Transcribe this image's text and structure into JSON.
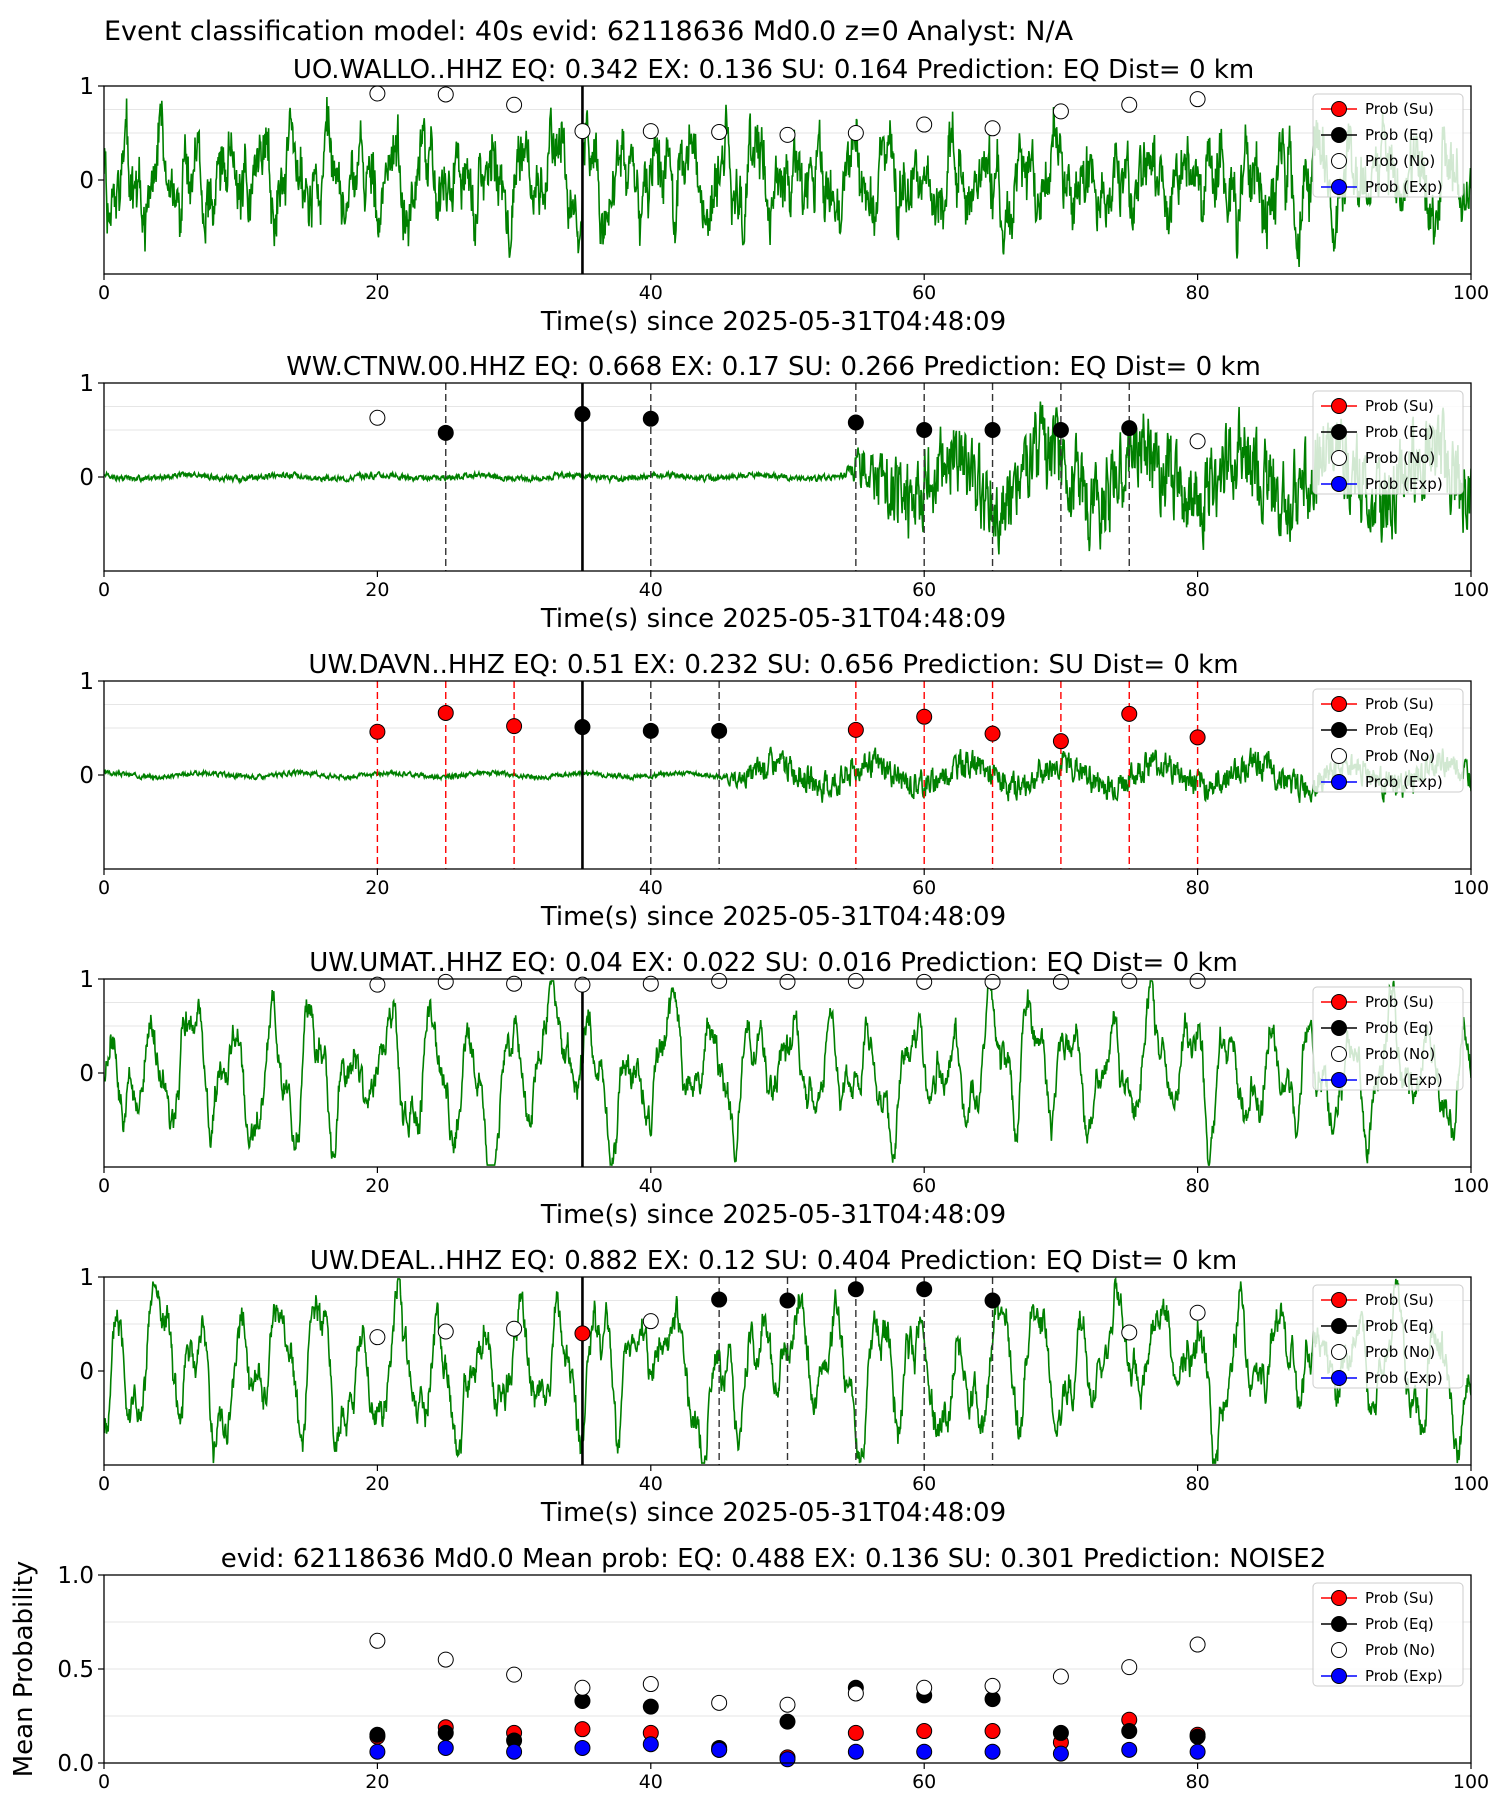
{
  "suptitle": "Event classification model: 40s evid: 62118636 Md0.0 z=0 Analyst: N/A",
  "legend_labels": [
    "Prob (Su)",
    "Prob (Eq)",
    "Prob (No)",
    "Prob (Exp)"
  ],
  "colors": {
    "su": "#ff0000",
    "eq": "#000000",
    "no": "#ffffff",
    "exp": "#0000ff",
    "wave": "#008000"
  },
  "chart_data": [
    {
      "type": "line",
      "title": "UO.WALLO..HHZ   EQ: 0.342  EX: 0.136  SU: 0.164   Prediction: EQ    Dist= 0 km",
      "xlabel": "Time(s) since 2025-05-31T04:48:09",
      "ylabel": "",
      "xlim": [
        0,
        100
      ],
      "ylim": [
        -1,
        1
      ],
      "xticks": [
        "0",
        "20",
        "40",
        "60",
        "80",
        "100"
      ],
      "yticks": [
        "1",
        "0"
      ],
      "waveform": {
        "style": "noisy",
        "amplitude": 0.6,
        "seed": 1,
        "onset": 0,
        "post_gain": 1
      },
      "pick_time": 35,
      "points": [
        {
          "x": 20,
          "y": 0.92,
          "cls": "no"
        },
        {
          "x": 25,
          "y": 0.91,
          "cls": "no"
        },
        {
          "x": 30,
          "y": 0.8,
          "cls": "no"
        },
        {
          "x": 35,
          "y": 0.52,
          "cls": "no"
        },
        {
          "x": 40,
          "y": 0.52,
          "cls": "no"
        },
        {
          "x": 45,
          "y": 0.51,
          "cls": "no"
        },
        {
          "x": 50,
          "y": 0.48,
          "cls": "no"
        },
        {
          "x": 55,
          "y": 0.5,
          "cls": "no"
        },
        {
          "x": 60,
          "y": 0.59,
          "cls": "no"
        },
        {
          "x": 65,
          "y": 0.55,
          "cls": "no"
        },
        {
          "x": 70,
          "y": 0.73,
          "cls": "no"
        },
        {
          "x": 75,
          "y": 0.8,
          "cls": "no"
        },
        {
          "x": 80,
          "y": 0.86,
          "cls": "no"
        }
      ],
      "vlines": []
    },
    {
      "type": "line",
      "title": "WW.CTNW.00.HHZ   EQ: 0.668  EX: 0.17  SU: 0.266   Prediction: EQ    Dist= 0 km",
      "xlabel": "Time(s) since 2025-05-31T04:48:09",
      "ylabel": "",
      "xlim": [
        0,
        100
      ],
      "ylim": [
        -1,
        1
      ],
      "xticks": [
        "0",
        "20",
        "40",
        "60",
        "80",
        "100"
      ],
      "yticks": [
        "1",
        "0"
      ],
      "waveform": {
        "style": "onset",
        "amplitude": 0.05,
        "seed": 2,
        "onset": 54,
        "post_gain": 14
      },
      "pick_time": 35,
      "points": [
        {
          "x": 20,
          "y": 0.63,
          "cls": "no"
        },
        {
          "x": 25,
          "y": 0.47,
          "cls": "eq"
        },
        {
          "x": 35,
          "y": 0.67,
          "cls": "eq"
        },
        {
          "x": 40,
          "y": 0.62,
          "cls": "eq"
        },
        {
          "x": 55,
          "y": 0.58,
          "cls": "eq"
        },
        {
          "x": 60,
          "y": 0.5,
          "cls": "eq"
        },
        {
          "x": 65,
          "y": 0.5,
          "cls": "eq"
        },
        {
          "x": 70,
          "y": 0.5,
          "cls": "eq"
        },
        {
          "x": 75,
          "y": 0.52,
          "cls": "eq"
        },
        {
          "x": 80,
          "y": 0.38,
          "cls": "no"
        }
      ],
      "vlines": [
        {
          "x": 25,
          "cls": "eq"
        },
        {
          "x": 40,
          "cls": "eq"
        },
        {
          "x": 55,
          "cls": "eq"
        },
        {
          "x": 60,
          "cls": "eq"
        },
        {
          "x": 65,
          "cls": "eq"
        },
        {
          "x": 70,
          "cls": "eq"
        },
        {
          "x": 75,
          "cls": "eq"
        }
      ]
    },
    {
      "type": "line",
      "title": "UW.DAVN..HHZ   EQ: 0.51  EX: 0.232  SU: 0.656   Prediction: SU    Dist= 0 km",
      "xlabel": "Time(s) since 2025-05-31T04:48:09",
      "ylabel": "",
      "xlim": [
        0,
        100
      ],
      "ylim": [
        -1,
        1
      ],
      "xticks": [
        "0",
        "20",
        "40",
        "60",
        "80",
        "100"
      ],
      "yticks": [
        "1",
        "0"
      ],
      "waveform": {
        "style": "onset",
        "amplitude": 0.04,
        "seed": 3,
        "onset": 45,
        "post_gain": 6
      },
      "pick_time": 35,
      "points": [
        {
          "x": 20,
          "y": 0.46,
          "cls": "su"
        },
        {
          "x": 25,
          "y": 0.66,
          "cls": "su"
        },
        {
          "x": 30,
          "y": 0.52,
          "cls": "su"
        },
        {
          "x": 35,
          "y": 0.51,
          "cls": "eq"
        },
        {
          "x": 40,
          "y": 0.47,
          "cls": "eq"
        },
        {
          "x": 45,
          "y": 0.47,
          "cls": "eq"
        },
        {
          "x": 55,
          "y": 0.48,
          "cls": "su"
        },
        {
          "x": 60,
          "y": 0.62,
          "cls": "su"
        },
        {
          "x": 65,
          "y": 0.44,
          "cls": "su"
        },
        {
          "x": 70,
          "y": 0.36,
          "cls": "su"
        },
        {
          "x": 75,
          "y": 0.65,
          "cls": "su"
        },
        {
          "x": 80,
          "y": 0.4,
          "cls": "su"
        }
      ],
      "vlines": [
        {
          "x": 20,
          "cls": "su"
        },
        {
          "x": 25,
          "cls": "su"
        },
        {
          "x": 30,
          "cls": "su"
        },
        {
          "x": 40,
          "cls": "eq"
        },
        {
          "x": 45,
          "cls": "eq"
        },
        {
          "x": 55,
          "cls": "su"
        },
        {
          "x": 60,
          "cls": "su"
        },
        {
          "x": 65,
          "cls": "su"
        },
        {
          "x": 70,
          "cls": "su"
        },
        {
          "x": 75,
          "cls": "su"
        },
        {
          "x": 80,
          "cls": "su"
        }
      ]
    },
    {
      "type": "line",
      "title": "UW.UMAT..HHZ   EQ: 0.04  EX: 0.022  SU: 0.016   Prediction: EQ    Dist= 0 km",
      "xlabel": "Time(s) since 2025-05-31T04:48:09",
      "ylabel": "",
      "xlim": [
        0,
        100
      ],
      "ylim": [
        -1,
        1
      ],
      "xticks": [
        "0",
        "20",
        "40",
        "60",
        "80",
        "100"
      ],
      "yticks": [
        "1",
        "0"
      ],
      "waveform": {
        "style": "smooth",
        "amplitude": 0.55,
        "seed": 4,
        "onset": 0,
        "post_gain": 1
      },
      "pick_time": 35,
      "points": [
        {
          "x": 20,
          "y": 0.94,
          "cls": "no"
        },
        {
          "x": 25,
          "y": 0.97,
          "cls": "no"
        },
        {
          "x": 30,
          "y": 0.95,
          "cls": "no"
        },
        {
          "x": 35,
          "y": 0.94,
          "cls": "no"
        },
        {
          "x": 40,
          "y": 0.95,
          "cls": "no"
        },
        {
          "x": 45,
          "y": 0.98,
          "cls": "no"
        },
        {
          "x": 50,
          "y": 0.97,
          "cls": "no"
        },
        {
          "x": 55,
          "y": 0.98,
          "cls": "no"
        },
        {
          "x": 60,
          "y": 0.97,
          "cls": "no"
        },
        {
          "x": 65,
          "y": 0.97,
          "cls": "no"
        },
        {
          "x": 70,
          "y": 0.97,
          "cls": "no"
        },
        {
          "x": 75,
          "y": 0.98,
          "cls": "no"
        },
        {
          "x": 80,
          "y": 0.98,
          "cls": "no"
        }
      ],
      "vlines": []
    },
    {
      "type": "line",
      "title": "UW.DEAL..HHZ   EQ: 0.882  EX: 0.12  SU: 0.404   Prediction: EQ    Dist= 0 km",
      "xlabel": "Time(s) since 2025-05-31T04:48:09",
      "ylabel": "",
      "xlim": [
        0,
        100
      ],
      "ylim": [
        -1,
        1
      ],
      "xticks": [
        "0",
        "20",
        "40",
        "60",
        "80",
        "100"
      ],
      "yticks": [
        "1",
        "0"
      ],
      "waveform": {
        "style": "smooth",
        "amplitude": 0.6,
        "seed": 5,
        "onset": 0,
        "post_gain": 1
      },
      "pick_time": 35,
      "points": [
        {
          "x": 20,
          "y": 0.36,
          "cls": "no"
        },
        {
          "x": 25,
          "y": 0.42,
          "cls": "no"
        },
        {
          "x": 30,
          "y": 0.45,
          "cls": "no"
        },
        {
          "x": 35,
          "y": 0.4,
          "cls": "su"
        },
        {
          "x": 40,
          "y": 0.53,
          "cls": "no"
        },
        {
          "x": 45,
          "y": 0.76,
          "cls": "eq"
        },
        {
          "x": 50,
          "y": 0.75,
          "cls": "eq"
        },
        {
          "x": 55,
          "y": 0.87,
          "cls": "eq"
        },
        {
          "x": 60,
          "y": 0.87,
          "cls": "eq"
        },
        {
          "x": 65,
          "y": 0.75,
          "cls": "eq"
        },
        {
          "x": 75,
          "y": 0.41,
          "cls": "no"
        },
        {
          "x": 80,
          "y": 0.62,
          "cls": "no"
        }
      ],
      "vlines": [
        {
          "x": 45,
          "cls": "eq"
        },
        {
          "x": 50,
          "cls": "eq"
        },
        {
          "x": 55,
          "cls": "eq"
        },
        {
          "x": 60,
          "cls": "eq"
        },
        {
          "x": 65,
          "cls": "eq"
        }
      ]
    },
    {
      "type": "scatter",
      "title": "evid: 62118636  Md0.0   Mean prob:   EQ: 0.488  EX: 0.136  SU: 0.301   Prediction: NOISE2",
      "xlabel": "",
      "ylabel": "Mean Probability",
      "xlim": [
        0,
        100
      ],
      "ylim": [
        0,
        1
      ],
      "xticks": [
        "0",
        "20",
        "40",
        "60",
        "80",
        "100"
      ],
      "yticks": [
        "1.0",
        "0.5",
        "0.0"
      ],
      "series": [
        {
          "name": "Prob (Su)",
          "cls": "su",
          "x": [
            20,
            25,
            30,
            35,
            40,
            45,
            50,
            55,
            60,
            65,
            70,
            75,
            80
          ],
          "y": [
            0.14,
            0.19,
            0.16,
            0.18,
            0.16,
            0.07,
            0.03,
            0.16,
            0.17,
            0.17,
            0.11,
            0.23,
            0.15
          ]
        },
        {
          "name": "Prob (Eq)",
          "cls": "eq",
          "x": [
            20,
            25,
            30,
            35,
            40,
            45,
            50,
            55,
            60,
            65,
            70,
            75,
            80
          ],
          "y": [
            0.15,
            0.16,
            0.12,
            0.33,
            0.3,
            0.08,
            0.22,
            0.4,
            0.36,
            0.34,
            0.16,
            0.17,
            0.14
          ]
        },
        {
          "name": "Prob (No)",
          "cls": "no",
          "x": [
            20,
            25,
            30,
            35,
            40,
            45,
            50,
            55,
            60,
            65,
            70,
            75,
            80
          ],
          "y": [
            0.65,
            0.55,
            0.47,
            0.4,
            0.42,
            0.32,
            0.31,
            0.37,
            0.4,
            0.41,
            0.46,
            0.51,
            0.63
          ]
        },
        {
          "name": "Prob (Exp)",
          "cls": "exp",
          "x": [
            20,
            25,
            30,
            35,
            40,
            45,
            50,
            55,
            60,
            65,
            70,
            75,
            80
          ],
          "y": [
            0.06,
            0.08,
            0.06,
            0.08,
            0.1,
            0.07,
            0.02,
            0.06,
            0.06,
            0.06,
            0.05,
            0.07,
            0.06
          ]
        }
      ]
    }
  ]
}
